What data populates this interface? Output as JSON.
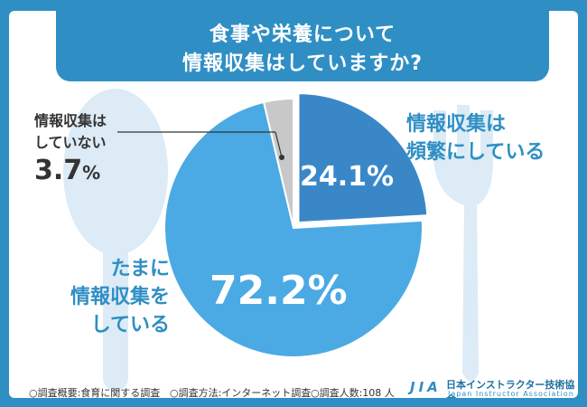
{
  "title": {
    "line1": "食事や栄養について",
    "line2": "情報収集はしていますか?"
  },
  "chart_data": {
    "type": "pie",
    "slices": [
      {
        "label": "情報収集は頻繁にしている",
        "value": 24.1,
        "display": "24.1%",
        "color": "#3a87c8"
      },
      {
        "label": "たまに情報収集をしている",
        "value": 72.2,
        "display": "72.2%",
        "color": "#4baae3"
      },
      {
        "label": "情報収集はしていない",
        "value": 3.7,
        "display": "3.7%",
        "color": "#c8c8c8"
      }
    ]
  },
  "labels": {
    "frequent": [
      "情報収集は",
      "頻繁にしている"
    ],
    "sometimes": [
      "たまに",
      "情報収集を",
      "している"
    ],
    "none": [
      "情報収集は",
      "していない"
    ],
    "none_value": "3.7",
    "none_pct": "%"
  },
  "footer": {
    "topic": "○調査概要:食育に関する調査",
    "method": "○調査方法:インターネット調査",
    "count": "○調査人数:108 人"
  },
  "logo": {
    "abbr": "JIA",
    "name": "日本インストラクター技術協会",
    "english": "Japan Instructor Association"
  },
  "colors": {
    "frame": "#2f8fc4",
    "utensil": "#dcebf6",
    "label_blue": "#2f8fc4"
  }
}
